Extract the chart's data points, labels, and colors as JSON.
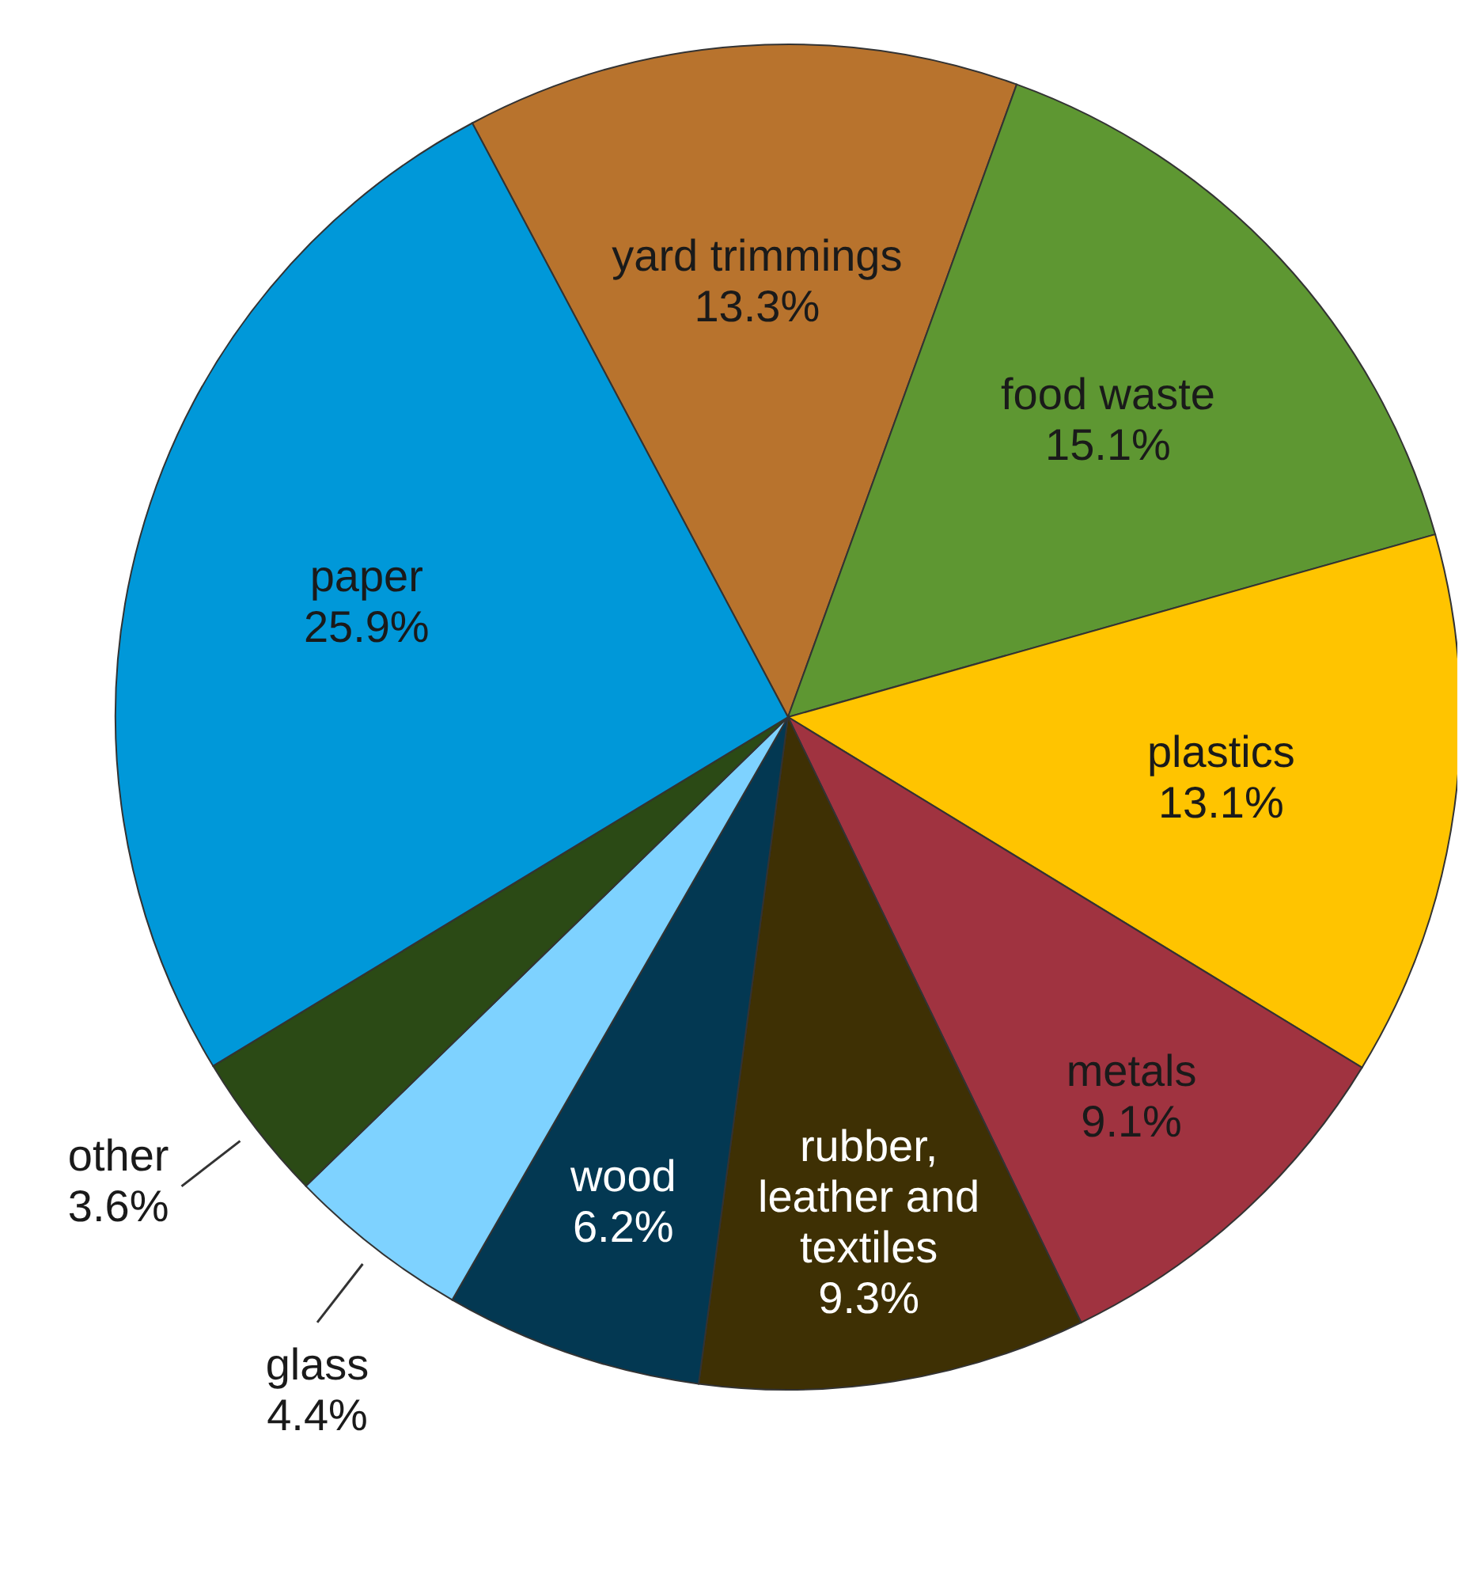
{
  "chart_data": {
    "type": "pie",
    "categories": [
      "yard trimmings",
      "food waste",
      "plastics",
      "metals",
      "rubber, leather and textiles",
      "wood",
      "glass",
      "other",
      "paper"
    ],
    "values": [
      13.3,
      15.1,
      13.1,
      9.1,
      9.3,
      6.2,
      4.4,
      3.6,
      25.9
    ],
    "value_labels": [
      "13.3%",
      "15.1%",
      "13.1%",
      "9.1%",
      "9.3%",
      "6.2%",
      "4.4%",
      "3.6%",
      "25.9%"
    ],
    "colors": [
      "#b8732d",
      "#5e9732",
      "#ffc400",
      "#a03340",
      "#3e3004",
      "#033852",
      "#7ed2ff",
      "#2b4a15",
      "#0098d9"
    ]
  }
}
